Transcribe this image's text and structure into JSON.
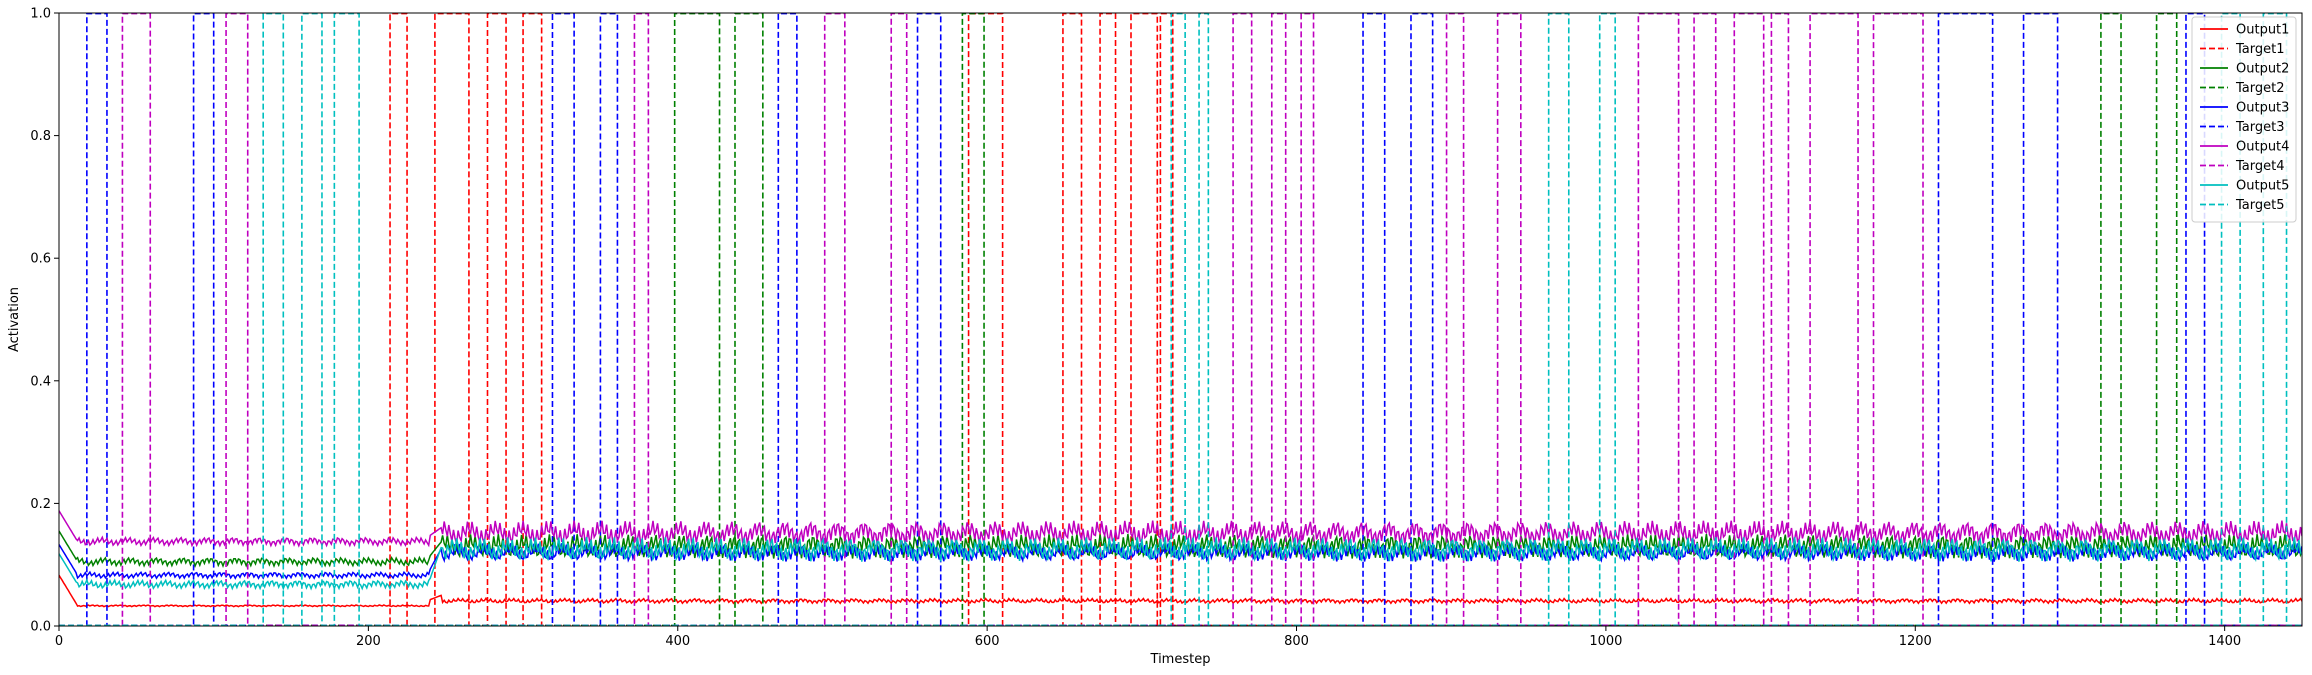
{
  "chart_data": {
    "type": "line",
    "title": "",
    "xlabel": "Timestep",
    "ylabel": "Activation",
    "xlim": [
      0,
      1450
    ],
    "ylim": [
      0,
      1.0
    ],
    "x_ticks": [
      0,
      200,
      400,
      600,
      800,
      1000,
      1200,
      1400
    ],
    "y_ticks": [
      0.0,
      0.2,
      0.4,
      0.6,
      0.8,
      1.0
    ],
    "x_tick_labels": [
      "0",
      "200",
      "400",
      "600",
      "800",
      "1000",
      "1200",
      "1400"
    ],
    "y_tick_labels": [
      "0.0",
      "0.2",
      "0.4",
      "0.6",
      "0.8",
      "1.0"
    ],
    "grid": false,
    "legend_position": "top-right",
    "series": [
      {
        "name": "Output1",
        "color": "#ff0000",
        "style": "solid",
        "segments": [
          [
            0,
            240,
            0.033
          ],
          [
            240,
            1450,
            0.041
          ]
        ]
      },
      {
        "name": "Target1",
        "color": "#ff0000",
        "style": "dashed",
        "pulses": [
          [
            214,
            225
          ],
          [
            243,
            265
          ],
          [
            277,
            289
          ],
          [
            300,
            312
          ],
          [
            588,
            610
          ],
          [
            649,
            661
          ],
          [
            673,
            683
          ],
          [
            693,
            710
          ],
          [
            712,
            720
          ]
        ]
      },
      {
        "name": "Output2",
        "color": "#008000",
        "style": "solid",
        "segments": [
          [
            0,
            240,
            0.105
          ],
          [
            240,
            1450,
            0.13
          ]
        ]
      },
      {
        "name": "Target2",
        "color": "#008000",
        "style": "dashed",
        "pulses": [
          [
            398,
            427
          ],
          [
            437,
            455
          ],
          [
            584,
            598
          ],
          [
            1320,
            1333
          ],
          [
            1356,
            1369
          ]
        ]
      },
      {
        "name": "Output3",
        "color": "#0000ff",
        "style": "solid",
        "segments": [
          [
            0,
            240,
            0.083
          ],
          [
            240,
            1450,
            0.12
          ]
        ]
      },
      {
        "name": "Target3",
        "color": "#0000ff",
        "style": "dashed",
        "pulses": [
          [
            18,
            31
          ],
          [
            87,
            100
          ],
          [
            319,
            333
          ],
          [
            350,
            361
          ],
          [
            465,
            477
          ],
          [
            555,
            570
          ],
          [
            843,
            857
          ],
          [
            874,
            888
          ],
          [
            1215,
            1250
          ],
          [
            1270,
            1292
          ],
          [
            1375,
            1387
          ]
        ]
      },
      {
        "name": "Output4",
        "color": "#bf00bf",
        "style": "solid",
        "segments": [
          [
            0,
            240,
            0.138
          ],
          [
            240,
            1450,
            0.152
          ]
        ]
      },
      {
        "name": "Target4",
        "color": "#bf00bf",
        "style": "dashed",
        "pulses": [
          [
            41,
            59
          ],
          [
            108,
            122
          ],
          [
            372,
            381
          ],
          [
            495,
            508
          ],
          [
            538,
            548
          ],
          [
            759,
            771
          ],
          [
            784,
            793
          ],
          [
            803,
            811
          ],
          [
            897,
            908
          ],
          [
            930,
            945
          ],
          [
            1021,
            1047
          ],
          [
            1057,
            1071
          ],
          [
            1083,
            1102
          ],
          [
            1107,
            1118
          ],
          [
            1132,
            1163
          ],
          [
            1173,
            1205
          ]
        ]
      },
      {
        "name": "Output5",
        "color": "#00bfbf",
        "style": "solid",
        "segments": [
          [
            0,
            240,
            0.068
          ],
          [
            240,
            1450,
            0.125
          ]
        ]
      },
      {
        "name": "Target5",
        "color": "#00bfbf",
        "style": "dashed",
        "pulses": [
          [
            132,
            145
          ],
          [
            157,
            170
          ],
          [
            178,
            194
          ],
          [
            719,
            728
          ],
          [
            737,
            743
          ],
          [
            963,
            976
          ],
          [
            996,
            1006
          ],
          [
            1398,
            1410
          ],
          [
            1425,
            1440
          ]
        ]
      }
    ]
  }
}
